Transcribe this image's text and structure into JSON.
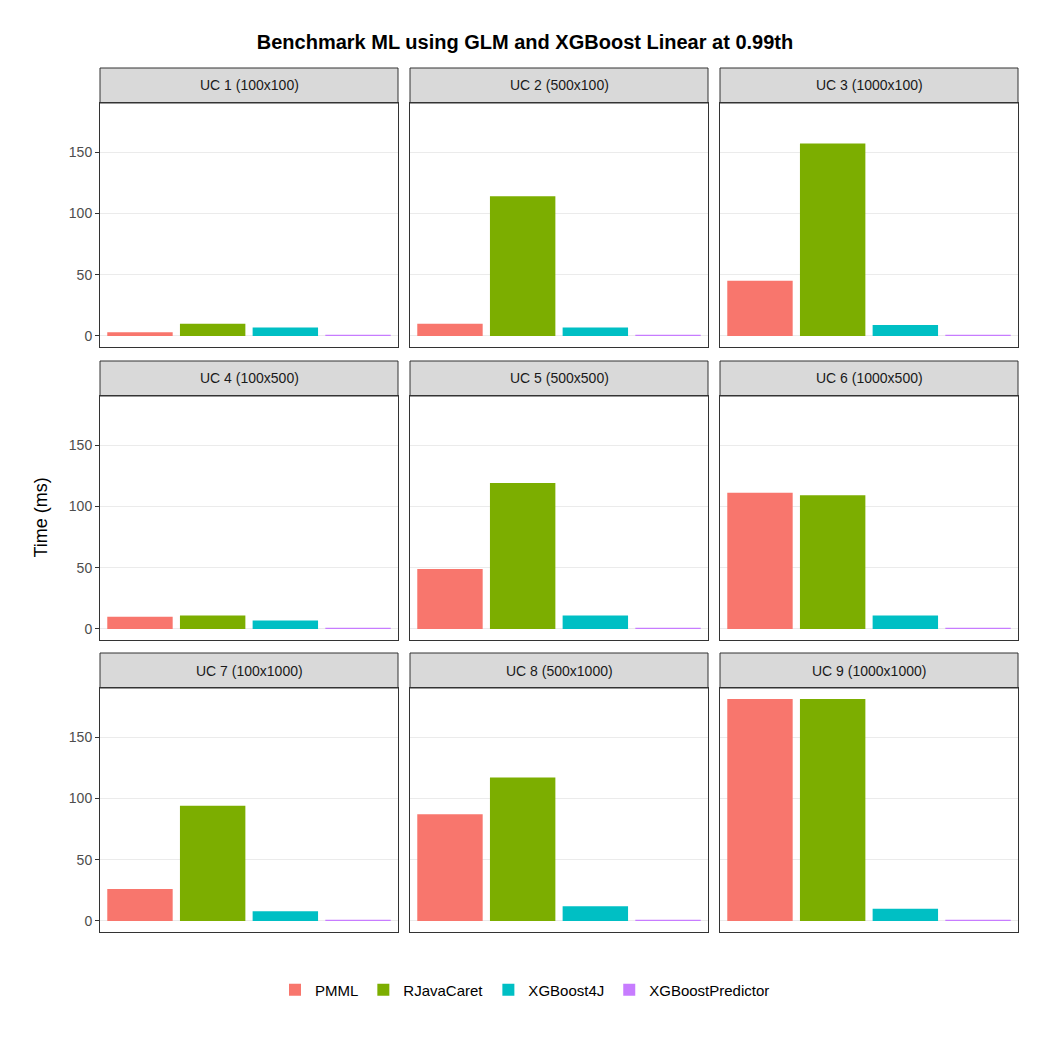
{
  "chart_data": {
    "type": "bar",
    "title": "Benchmark ML using GLM and XGBoost Linear at 0.99th",
    "y_label": "Time (ms)",
    "categories": [
      null,
      null,
      null,
      null
    ],
    "ylim": [
      -9,
      190
    ],
    "yticks": [
      0,
      50,
      100,
      150
    ],
    "grid": true,
    "legend": "bottom",
    "tick_labels": "y",
    "series": [
      {
        "name": "PMML",
        "color": "#F8766D"
      },
      {
        "name": "RJavaCaret",
        "color": "#7CAE00"
      },
      {
        "name": "XGBoost4J",
        "color": "#00BFC4"
      },
      {
        "name": "XGBoostPredictor",
        "color": "#C77CFF"
      }
    ],
    "panels": [
      {
        "title": "UC 1 (100x100)",
        "values": [
          3,
          10,
          7,
          1
        ]
      },
      {
        "title": "UC 2 (500x100)",
        "values": [
          10,
          114,
          7,
          1
        ]
      },
      {
        "title": "UC 3 (1000x100)",
        "values": [
          45,
          157,
          9,
          1
        ]
      },
      {
        "title": "UC 4 (100x500)",
        "values": [
          10,
          11,
          7,
          1
        ]
      },
      {
        "title": "UC 5 (500x500)",
        "values": [
          49,
          119,
          11,
          1
        ]
      },
      {
        "title": "UC 6 (1000x500)",
        "values": [
          111,
          109,
          11,
          1
        ]
      },
      {
        "title": "UC 7 (100x1000)",
        "values": [
          26,
          94,
          8,
          1
        ]
      },
      {
        "title": "UC 8 (500x1000)",
        "values": [
          87,
          117,
          12,
          1
        ]
      },
      {
        "title": "UC 9 (1000x1000)",
        "values": [
          181,
          181,
          10,
          1
        ]
      }
    ]
  }
}
